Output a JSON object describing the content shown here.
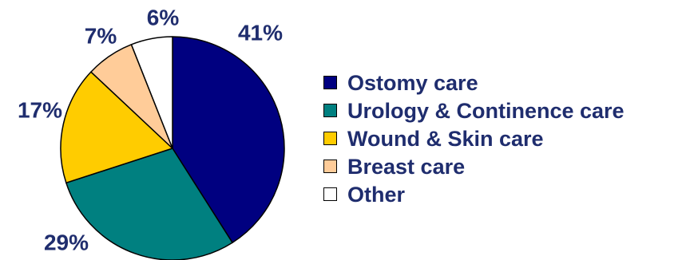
{
  "chart_data": {
    "type": "pie",
    "title": "",
    "slices": [
      {
        "label": "Ostomy care",
        "value": 41,
        "value_label": "41%",
        "color": "#000080"
      },
      {
        "label": "Urology & Continence care",
        "value": 29,
        "value_label": "29%",
        "color": "#008080"
      },
      {
        "label": "Wound & Skin care",
        "value": 17,
        "value_label": "17%",
        "color": "#ffcc00"
      },
      {
        "label": "Breast care",
        "value": 7,
        "value_label": "7%",
        "color": "#ffcc99"
      },
      {
        "label": "Other",
        "value": 6,
        "value_label": "6%",
        "color": "#ffffff"
      }
    ],
    "start_angle_deg": 0,
    "direction": "clockwise",
    "legend_position": "right",
    "text_color": "#1f2d6e",
    "outline_color": "#000000"
  }
}
